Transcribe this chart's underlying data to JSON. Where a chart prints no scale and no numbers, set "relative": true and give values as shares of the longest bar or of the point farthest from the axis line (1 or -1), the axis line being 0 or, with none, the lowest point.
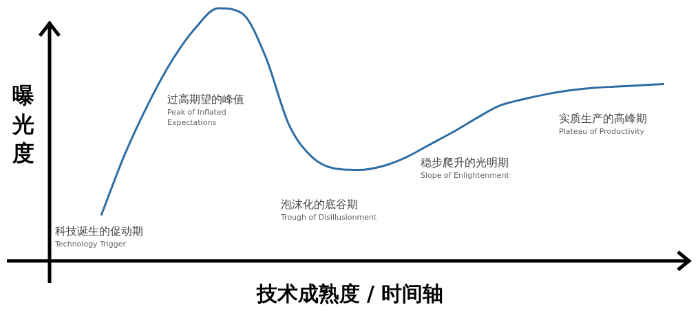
{
  "chart_data": {
    "type": "line",
    "relative": true,
    "xlabel": "技术成熟度 / 时间轴",
    "ylabel": "曝光度",
    "categories": [
      null,
      null,
      null,
      null,
      null,
      null,
      null,
      null,
      null,
      null,
      null,
      null,
      null,
      null,
      null,
      null,
      null,
      null,
      null,
      null,
      null,
      null,
      null,
      null,
      null
    ],
    "values": [
      0.18,
      0.42,
      0.62,
      0.79,
      0.92,
      1.0,
      0.98,
      0.81,
      0.54,
      0.41,
      0.365,
      0.36,
      0.375,
      0.41,
      0.46,
      0.51,
      0.565,
      0.615,
      0.64,
      0.66,
      0.675,
      0.685,
      0.69,
      0.695,
      0.7
    ],
    "color": "#2e6da4",
    "annotations": [
      "科技诞生的促动期\nTechnology Trigger",
      "过高期望的峰值\nPeak of Inflated\nExpectations",
      "泡沫化的底谷期\nTrough of Disillusionment",
      "稳步爬升的光明期\nSlope of Enlightenment",
      "实质生产的高峰期\nPlateau of Productivity"
    ],
    "marker": "none",
    "legend": false
  }
}
